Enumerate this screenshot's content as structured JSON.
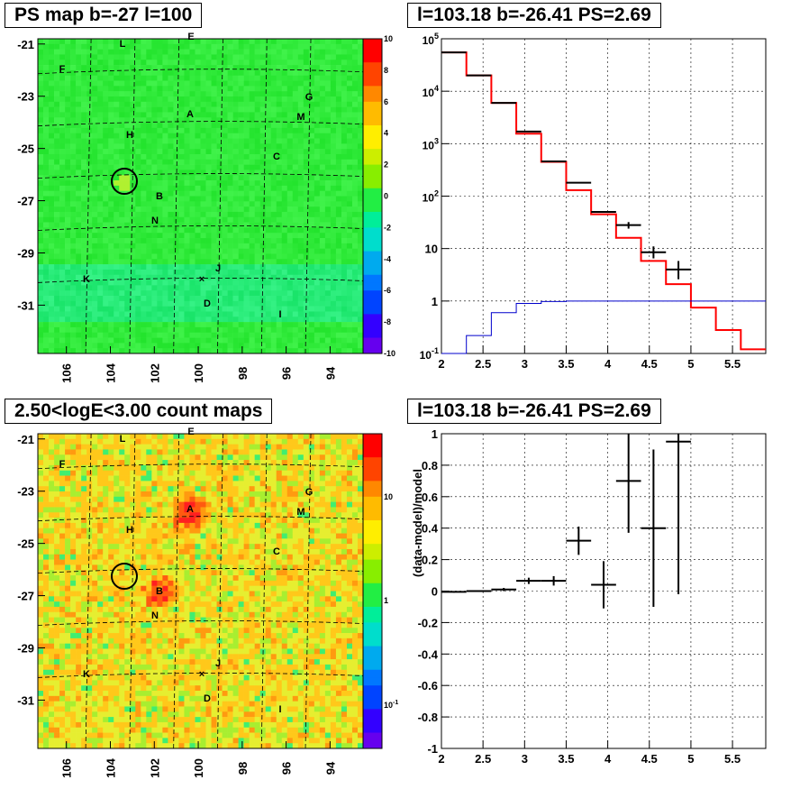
{
  "panels": {
    "tl_title": "PS map b=-27 l=100",
    "tr_title": "l=103.18 b=-26.41 PS=2.69",
    "bl_title": "2.50<logE<3.00 count maps",
    "br_title": "l=103.18 b=-26.41 PS=2.69"
  },
  "colors": {
    "map_green": "#22ee44",
    "data": "#000000",
    "model": "#ff0000",
    "ps_model": "#0000cc"
  },
  "chart_data": [
    {
      "type": "heatmap",
      "title": "PS map b=-27 l=100",
      "x_ticks": [
        "106",
        "104",
        "102",
        "100",
        "98",
        "96",
        "94"
      ],
      "y_ticks": [
        "-21",
        "-23",
        "-25",
        "-27",
        "-29",
        "-31"
      ],
      "colorbar": {
        "min": -10,
        "max": 10,
        "ticks": [
          "10",
          "8",
          "6",
          "4",
          "2",
          "0",
          "-2",
          "-4",
          "-6",
          "-8",
          "-10"
        ]
      },
      "labels": [
        "F",
        "L",
        "E",
        "G",
        "M",
        "A",
        "H",
        "C",
        "B",
        "N",
        "J",
        "K",
        "D",
        "I"
      ],
      "marker": "circle"
    },
    {
      "type": "line",
      "title": "l=103.18 b=-26.41 PS=2.69",
      "xlim": [
        2,
        5.9
      ],
      "ylim": [
        0.1,
        100000
      ],
      "yscale": "log",
      "x_ticks": [
        "2",
        "2.5",
        "3",
        "3.5",
        "4",
        "4.5",
        "5",
        "5.5"
      ],
      "y_ticks": [
        "10^-1",
        "1",
        "10",
        "10^2",
        "10^3",
        "10^4",
        "10^5"
      ],
      "series": [
        {
          "style": "step",
          "color": "#ff0000",
          "edges": [
            2.0,
            2.3,
            2.6,
            2.9,
            3.2,
            3.5,
            3.8,
            4.1,
            4.4,
            4.7,
            5.0,
            5.3,
            5.6,
            5.9
          ],
          "values": [
            55000,
            20000,
            6000,
            1550,
            450,
            130,
            45,
            16,
            5.8,
            2.1,
            0.75,
            0.28,
            0.12
          ]
        },
        {
          "style": "step",
          "color": "#0000cc",
          "edges": [
            2.0,
            2.3,
            2.6,
            2.9,
            3.2,
            3.5,
            3.8,
            4.1,
            4.4,
            4.7,
            5.0,
            5.3,
            5.6,
            5.9
          ],
          "values": [
            0.1,
            0.22,
            0.6,
            0.9,
            0.98,
            1.0,
            1.0,
            1.0,
            1.0,
            1.0,
            1.0,
            1.0,
            1.0
          ]
        },
        {
          "style": "errorbar",
          "color": "#000000",
          "x": [
            2.15,
            2.45,
            2.75,
            3.05,
            3.35,
            3.65,
            3.95,
            4.25,
            4.55,
            4.85
          ],
          "xerr": [
            0.15,
            0.15,
            0.15,
            0.15,
            0.15,
            0.15,
            0.15,
            0.15,
            0.15,
            0.15
          ],
          "y": [
            55000,
            20000,
            6000,
            1700,
            460,
            180,
            50,
            28,
            8.5,
            4
          ],
          "yerr_lo": [
            0,
            0,
            0,
            0,
            0,
            0,
            0,
            4,
            2,
            1.4
          ],
          "yerr_hi": [
            0,
            0,
            0,
            0,
            0,
            0,
            0,
            4,
            2.5,
            1.8
          ]
        }
      ]
    },
    {
      "type": "heatmap",
      "title": "2.50<logE<3.00 count maps",
      "x_ticks": [
        "106",
        "104",
        "102",
        "100",
        "98",
        "96",
        "94"
      ],
      "y_ticks": [
        "-21",
        "-23",
        "-25",
        "-27",
        "-29",
        "-31"
      ],
      "colorbar": {
        "scale": "log",
        "ticks": [
          "10",
          "1",
          "10^-1"
        ]
      },
      "labels": [
        "F",
        "L",
        "E",
        "G",
        "M",
        "A",
        "H",
        "C",
        "B",
        "N",
        "J",
        "K",
        "D",
        "I"
      ],
      "marker": "circle"
    },
    {
      "type": "scatter",
      "title": "l=103.18 b=-26.41 PS=2.69",
      "ylabel": "(data-model)/model",
      "xlim": [
        2,
        5.9
      ],
      "ylim": [
        -1,
        1
      ],
      "x_ticks": [
        "2",
        "2.5",
        "3",
        "3.5",
        "4",
        "4.5",
        "5",
        "5.5"
      ],
      "y_ticks": [
        "1",
        "0.8",
        "0.6",
        "0.4",
        "0.2",
        "0",
        "-0.2",
        "-0.4",
        "-0.6",
        "-0.8",
        "-1"
      ],
      "series": [
        {
          "style": "errorbar",
          "color": "#000000",
          "x": [
            2.15,
            2.45,
            2.75,
            3.05,
            3.35,
            3.65,
            3.95,
            4.25,
            4.55,
            4.85
          ],
          "xerr": [
            0.15,
            0.15,
            0.15,
            0.15,
            0.15,
            0.15,
            0.15,
            0.15,
            0.15,
            0.15
          ],
          "y": [
            -0.005,
            0.0,
            0.01,
            0.065,
            0.065,
            0.32,
            0.04,
            0.7,
            0.4,
            0.95
          ],
          "yerr_lo": [
            0.005,
            0.005,
            0.01,
            0.02,
            0.03,
            0.09,
            0.15,
            0.33,
            0.5,
            0.97
          ],
          "yerr_hi": [
            0.005,
            0.005,
            0.01,
            0.02,
            0.03,
            0.09,
            0.15,
            0.3,
            0.5,
            0.05
          ]
        }
      ]
    }
  ]
}
